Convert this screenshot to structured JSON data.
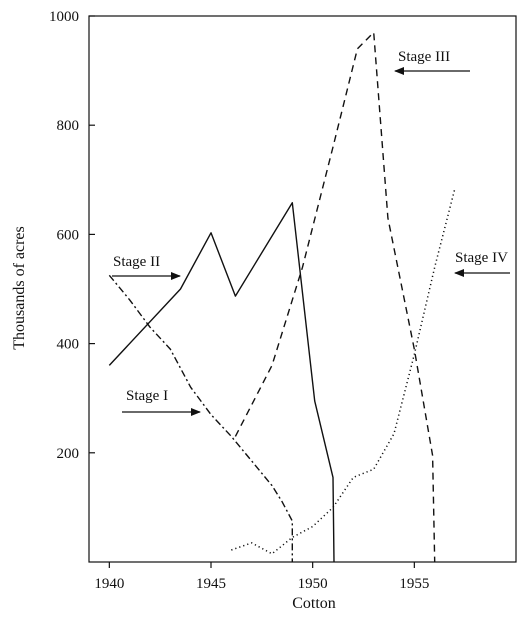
{
  "chart_data": {
    "type": "line",
    "title": "",
    "xlabel": "Cotton",
    "ylabel": "Thousands of acres",
    "xlim": [
      1939,
      1960
    ],
    "ylim": [
      0,
      1000
    ],
    "x_ticks": [
      "1940",
      "1945",
      "1950",
      "1955"
    ],
    "y_ticks": [
      "200",
      "400",
      "600",
      "800",
      "1000"
    ],
    "grid": false,
    "series": [
      {
        "name": "Stage I",
        "style": "dash-dot",
        "points": [
          [
            1940,
            525
          ],
          [
            1941,
            480
          ],
          [
            1942,
            430
          ],
          [
            1943,
            390
          ],
          [
            1944,
            320
          ],
          [
            1945,
            270
          ],
          [
            1946,
            230
          ],
          [
            1947,
            185
          ],
          [
            1948,
            140
          ],
          [
            1948.5,
            110
          ],
          [
            1949,
            75
          ],
          [
            1949,
            0
          ]
        ]
      },
      {
        "name": "Stage II",
        "style": "solid",
        "points": [
          [
            1940,
            360
          ],
          [
            1943.5,
            500
          ],
          [
            1945,
            603
          ],
          [
            1946.2,
            487
          ],
          [
            1949,
            658
          ],
          [
            1950.1,
            295
          ],
          [
            1951,
            155
          ],
          [
            1951.05,
            0
          ]
        ]
      },
      {
        "name": "Stage III",
        "style": "dashed",
        "points": [
          [
            1946.2,
            230
          ],
          [
            1948,
            360
          ],
          [
            1949.5,
            540
          ],
          [
            1951,
            760
          ],
          [
            1952.2,
            940
          ],
          [
            1953,
            970
          ],
          [
            1953.7,
            630
          ],
          [
            1955,
            390
          ],
          [
            1955.9,
            195
          ],
          [
            1956,
            0
          ]
        ]
      },
      {
        "name": "Stage IV",
        "style": "dotted",
        "points": [
          [
            1946,
            22
          ],
          [
            1947,
            35
          ],
          [
            1948,
            15
          ],
          [
            1949,
            45
          ],
          [
            1950,
            65
          ],
          [
            1951,
            100
          ],
          [
            1952,
            155
          ],
          [
            1953,
            170
          ],
          [
            1954,
            235
          ],
          [
            1955,
            380
          ],
          [
            1956,
            540
          ],
          [
            1957,
            685
          ]
        ]
      }
    ],
    "annotations": [
      {
        "text": "Stage I",
        "arrow": "right"
      },
      {
        "text": "Stage II",
        "arrow": "right"
      },
      {
        "text": "Stage III",
        "arrow": "left"
      },
      {
        "text": "Stage IV",
        "arrow": "left"
      }
    ]
  }
}
